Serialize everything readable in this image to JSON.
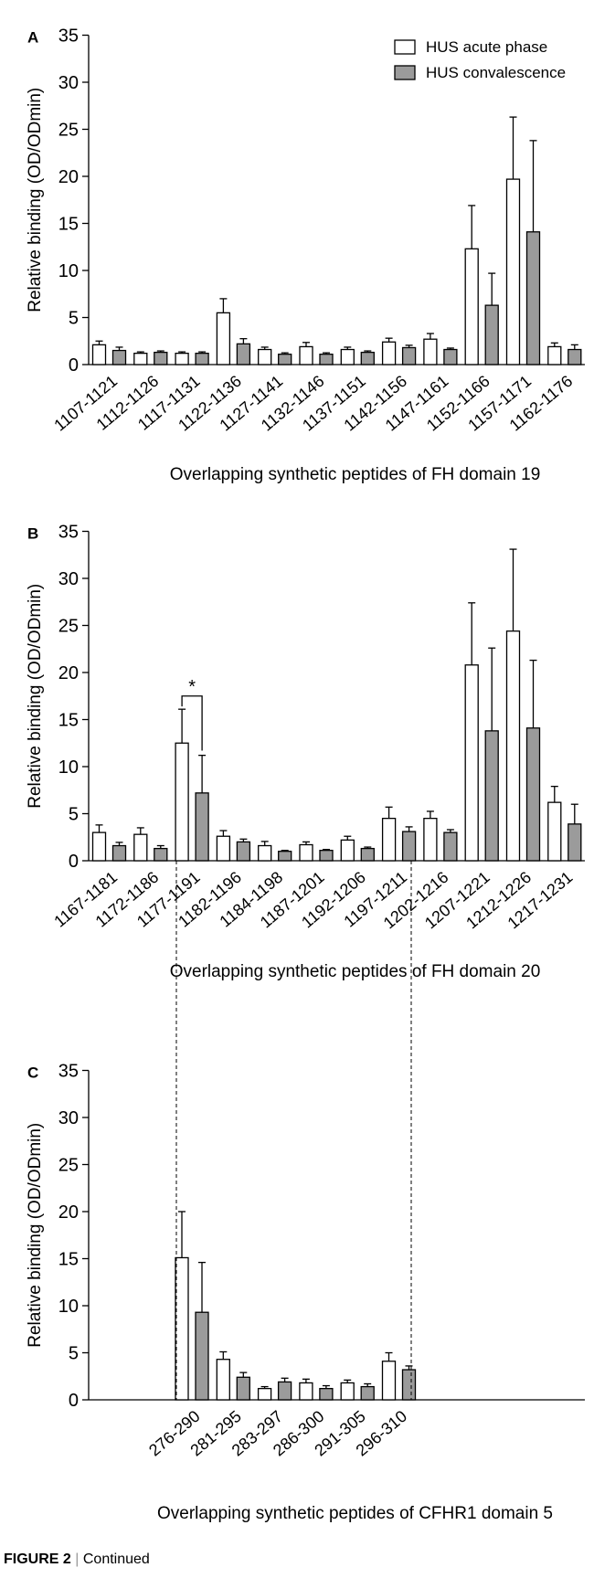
{
  "legend": {
    "series": [
      {
        "name": "HUS acute phase",
        "color": "#ffffff"
      },
      {
        "name": "HUS convalescence",
        "color": "#9b9b9b"
      }
    ],
    "placement": "top-right"
  },
  "chart_data": [
    {
      "panel": "A",
      "type": "bar",
      "ylabel": "Relative binding (OD/ODmin)",
      "xlabel": "Overlapping synthetic peptides of FH domain 19",
      "ylim": [
        0,
        35
      ],
      "yticks": [
        0,
        5,
        10,
        15,
        20,
        25,
        30,
        35
      ],
      "categories": [
        "1107-1121",
        "1112-1126",
        "1117-1131",
        "1122-1136",
        "1127-1141",
        "1132-1146",
        "1137-1151",
        "1142-1156",
        "1147-1161",
        "1152-1166",
        "1157-1171",
        "1162-1176"
      ],
      "series": [
        {
          "name": "HUS acute phase",
          "values": [
            2.1,
            1.2,
            1.2,
            5.5,
            1.6,
            1.9,
            1.6,
            2.4,
            2.7,
            12.3,
            19.7,
            1.9
          ],
          "errors": [
            0.4,
            0.15,
            0.15,
            1.5,
            0.25,
            0.45,
            0.25,
            0.4,
            0.6,
            4.6,
            6.6,
            0.4
          ]
        },
        {
          "name": "HUS convalescence",
          "values": [
            1.5,
            1.3,
            1.2,
            2.2,
            1.1,
            1.1,
            1.3,
            1.8,
            1.6,
            6.3,
            14.1,
            1.6
          ],
          "errors": [
            0.35,
            0.15,
            0.15,
            0.55,
            0.15,
            0.15,
            0.15,
            0.25,
            0.15,
            3.4,
            9.7,
            0.5
          ]
        }
      ],
      "annotations": []
    },
    {
      "panel": "B",
      "type": "bar",
      "ylabel": "Relative binding (OD/ODmin)",
      "xlabel": "Overlapping synthetic peptides of FH domain 20",
      "ylim": [
        0,
        35
      ],
      "yticks": [
        0,
        5,
        10,
        15,
        20,
        25,
        30,
        35
      ],
      "categories": [
        "1167-1181",
        "1172-1186",
        "1177-1191",
        "1182-1196",
        "1184-1198",
        "1187-1201",
        "1192-1206",
        "1197-1211",
        "1202-1216",
        "1207-1221",
        "1212-1226",
        "1217-1231"
      ],
      "series": [
        {
          "name": "HUS acute phase",
          "values": [
            3.0,
            2.8,
            12.5,
            2.6,
            1.6,
            1.7,
            2.2,
            4.5,
            4.5,
            20.8,
            24.4,
            6.2
          ],
          "errors": [
            0.8,
            0.7,
            3.6,
            0.6,
            0.45,
            0.3,
            0.4,
            1.2,
            0.75,
            6.6,
            8.7,
            1.7
          ]
        },
        {
          "name": "HUS convalescence",
          "values": [
            1.6,
            1.3,
            7.2,
            2.0,
            1.0,
            1.1,
            1.3,
            3.1,
            3.0,
            13.8,
            14.1,
            3.9
          ],
          "errors": [
            0.35,
            0.3,
            4.0,
            0.3,
            0.1,
            0.1,
            0.15,
            0.5,
            0.3,
            8.8,
            7.2,
            2.1
          ]
        }
      ],
      "annotations": [
        {
          "text": "*",
          "category_index": 2
        }
      ]
    },
    {
      "panel": "C",
      "type": "bar",
      "ylabel": "Relative binding (OD/ODmin)",
      "xlabel": "Overlapping synthetic peptides of CFHR1 domain 5",
      "ylim": [
        0,
        35
      ],
      "yticks": [
        0,
        5,
        10,
        15,
        20,
        25,
        30,
        35
      ],
      "categories": [
        "276-290",
        "281-295",
        "283-297",
        "286-300",
        "291-305",
        "296-310"
      ],
      "series": [
        {
          "name": "HUS acute phase",
          "values": [
            15.1,
            4.3,
            1.2,
            1.8,
            1.8,
            4.1
          ],
          "errors": [
            4.9,
            0.8,
            0.2,
            0.4,
            0.3,
            0.9
          ]
        },
        {
          "name": "HUS convalescence",
          "values": [
            9.3,
            2.4,
            1.9,
            1.2,
            1.4,
            3.2
          ],
          "errors": [
            5.3,
            0.5,
            0.4,
            0.3,
            0.3,
            0.4
          ]
        }
      ],
      "annotations": []
    }
  ],
  "caption": {
    "label": "FIGURE 2",
    "separator": "|",
    "text": "Continued"
  }
}
